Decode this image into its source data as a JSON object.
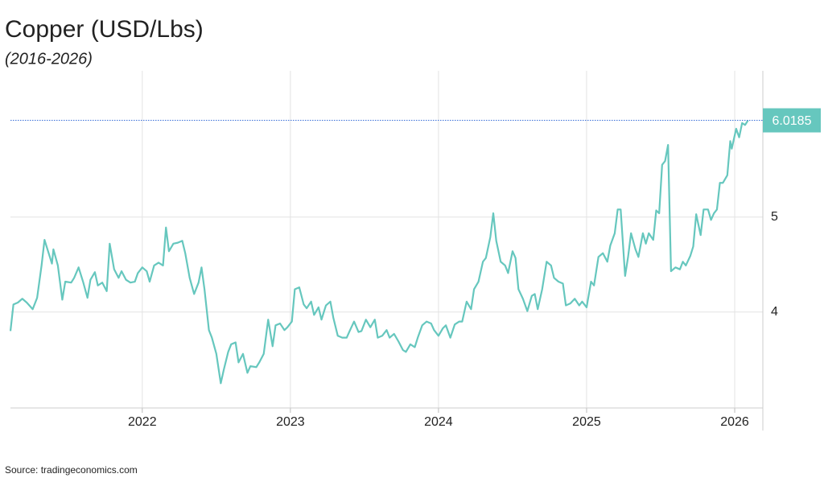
{
  "chart_data": {
    "type": "line",
    "title": "Copper (USD/Lbs)",
    "subtitle": "(2016-2026)",
    "source": "Source: tradingeconomics.com",
    "color": "#66c7be",
    "grid": true,
    "xlim": [
      2021.11,
      2026.19
    ],
    "xticks": [
      2022,
      2023,
      2024,
      2025,
      2026
    ],
    "ylim": [
      2.99,
      6.54
    ],
    "yticks": [
      4,
      5
    ],
    "x": [
      2021.11,
      2021.13,
      2021.16,
      2021.19,
      2021.22,
      2021.26,
      2021.29,
      2021.32,
      2021.34,
      2021.36,
      2021.39,
      2021.4,
      2021.43,
      2021.46,
      2021.48,
      2021.52,
      2021.54,
      2021.57,
      2021.6,
      2021.63,
      2021.65,
      2021.68,
      2021.7,
      2021.73,
      2021.76,
      2021.78,
      2021.81,
      2021.84,
      2021.86,
      2021.89,
      2021.92,
      2021.95,
      2021.97,
      2022.0,
      2022.03,
      2022.05,
      2022.08,
      2022.11,
      2022.14,
      2022.16,
      2022.18,
      2022.21,
      2022.24,
      2022.27,
      2022.29,
      2022.32,
      2022.35,
      2022.38,
      2022.4,
      2022.42,
      2022.45,
      2022.47,
      2022.5,
      2022.53,
      2022.55,
      2022.58,
      2022.6,
      2022.63,
      2022.65,
      2022.68,
      2022.71,
      2022.73,
      2022.77,
      2022.79,
      2022.82,
      2022.85,
      2022.88,
      2022.9,
      2022.93,
      2022.96,
      2022.98,
      2023.01,
      2023.03,
      2023.06,
      2023.09,
      2023.11,
      2023.14,
      2023.16,
      2023.19,
      2023.21,
      2023.24,
      2023.27,
      2023.29,
      2023.32,
      2023.35,
      2023.38,
      2023.4,
      2023.43,
      2023.46,
      2023.48,
      2023.51,
      2023.54,
      2023.57,
      2023.59,
      2023.62,
      2023.65,
      2023.67,
      2023.7,
      2023.73,
      2023.76,
      2023.78,
      2023.81,
      2023.84,
      2023.86,
      2023.89,
      2023.92,
      2023.95,
      2023.97,
      2024.0,
      2024.03,
      2024.05,
      2024.08,
      2024.11,
      2024.14,
      2024.16,
      2024.19,
      2024.22,
      2024.24,
      2024.27,
      2024.3,
      2024.32,
      2024.35,
      2024.37,
      2024.39,
      2024.42,
      2024.45,
      2024.47,
      2024.5,
      2024.52,
      2024.54,
      2024.57,
      2024.6,
      2024.63,
      2024.65,
      2024.67,
      2024.7,
      2024.73,
      2024.76,
      2024.78,
      2024.81,
      2024.84,
      2024.86,
      2024.89,
      2024.92,
      2024.95,
      2024.97,
      2025.0,
      2025.03,
      2025.05,
      2025.08,
      2025.11,
      2025.14,
      2025.16,
      2025.19,
      2025.21,
      2025.23,
      2025.26,
      2025.28,
      2025.3,
      2025.33,
      2025.35,
      2025.38,
      2025.4,
      2025.42,
      2025.45,
      2025.47,
      2025.49,
      2025.51,
      2025.53,
      2025.55,
      2025.57,
      2025.6,
      2025.63,
      2025.65,
      2025.67,
      2025.7,
      2025.72,
      2025.74,
      2025.77,
      2025.79,
      2025.82,
      2025.84,
      2025.86,
      2025.88,
      2025.9,
      2025.92,
      2025.95,
      2025.97,
      2025.98,
      2026.01,
      2026.03,
      2026.05,
      2026.07,
      2026.09
    ],
    "values": [
      3.8,
      4.08,
      4.1,
      4.14,
      4.1,
      4.03,
      4.15,
      4.49,
      4.76,
      4.66,
      4.51,
      4.66,
      4.49,
      4.13,
      4.32,
      4.31,
      4.36,
      4.47,
      4.32,
      4.15,
      4.34,
      4.42,
      4.28,
      4.31,
      4.22,
      4.72,
      4.45,
      4.36,
      4.43,
      4.34,
      4.31,
      4.32,
      4.41,
      4.47,
      4.43,
      4.32,
      4.49,
      4.52,
      4.49,
      4.89,
      4.64,
      4.72,
      4.73,
      4.75,
      4.62,
      4.36,
      4.19,
      4.31,
      4.47,
      4.24,
      3.81,
      3.73,
      3.56,
      3.25,
      3.39,
      3.58,
      3.66,
      3.68,
      3.47,
      3.56,
      3.36,
      3.43,
      3.42,
      3.47,
      3.56,
      3.92,
      3.64,
      3.86,
      3.88,
      3.81,
      3.84,
      3.9,
      4.24,
      4.26,
      4.08,
      4.04,
      4.11,
      3.97,
      4.05,
      3.92,
      4.07,
      4.11,
      3.94,
      3.75,
      3.73,
      3.73,
      3.8,
      3.9,
      3.79,
      3.8,
      3.92,
      3.84,
      3.92,
      3.73,
      3.75,
      3.81,
      3.73,
      3.77,
      3.69,
      3.6,
      3.58,
      3.66,
      3.63,
      3.73,
      3.86,
      3.9,
      3.88,
      3.81,
      3.75,
      3.83,
      3.86,
      3.73,
      3.87,
      3.9,
      3.9,
      4.11,
      4.03,
      4.24,
      4.32,
      4.53,
      4.57,
      4.79,
      5.04,
      4.75,
      4.53,
      4.49,
      4.41,
      4.64,
      4.57,
      4.24,
      4.14,
      4.01,
      4.17,
      4.19,
      4.03,
      4.24,
      4.53,
      4.49,
      4.36,
      4.32,
      4.3,
      4.07,
      4.09,
      4.14,
      4.07,
      4.11,
      4.05,
      4.32,
      4.28,
      4.58,
      4.62,
      4.53,
      4.7,
      4.83,
      5.08,
      5.08,
      4.38,
      4.58,
      4.83,
      4.66,
      4.58,
      4.83,
      4.72,
      4.83,
      4.76,
      5.07,
      5.04,
      5.55,
      5.59,
      5.76,
      4.43,
      4.47,
      4.45,
      4.53,
      4.49,
      4.59,
      4.69,
      5.03,
      4.81,
      5.08,
      5.08,
      4.97,
      5.04,
      5.08,
      5.36,
      5.36,
      5.44,
      5.8,
      5.72,
      5.93,
      5.84,
      5.99,
      5.97,
      6.0185
    ]
  }
}
